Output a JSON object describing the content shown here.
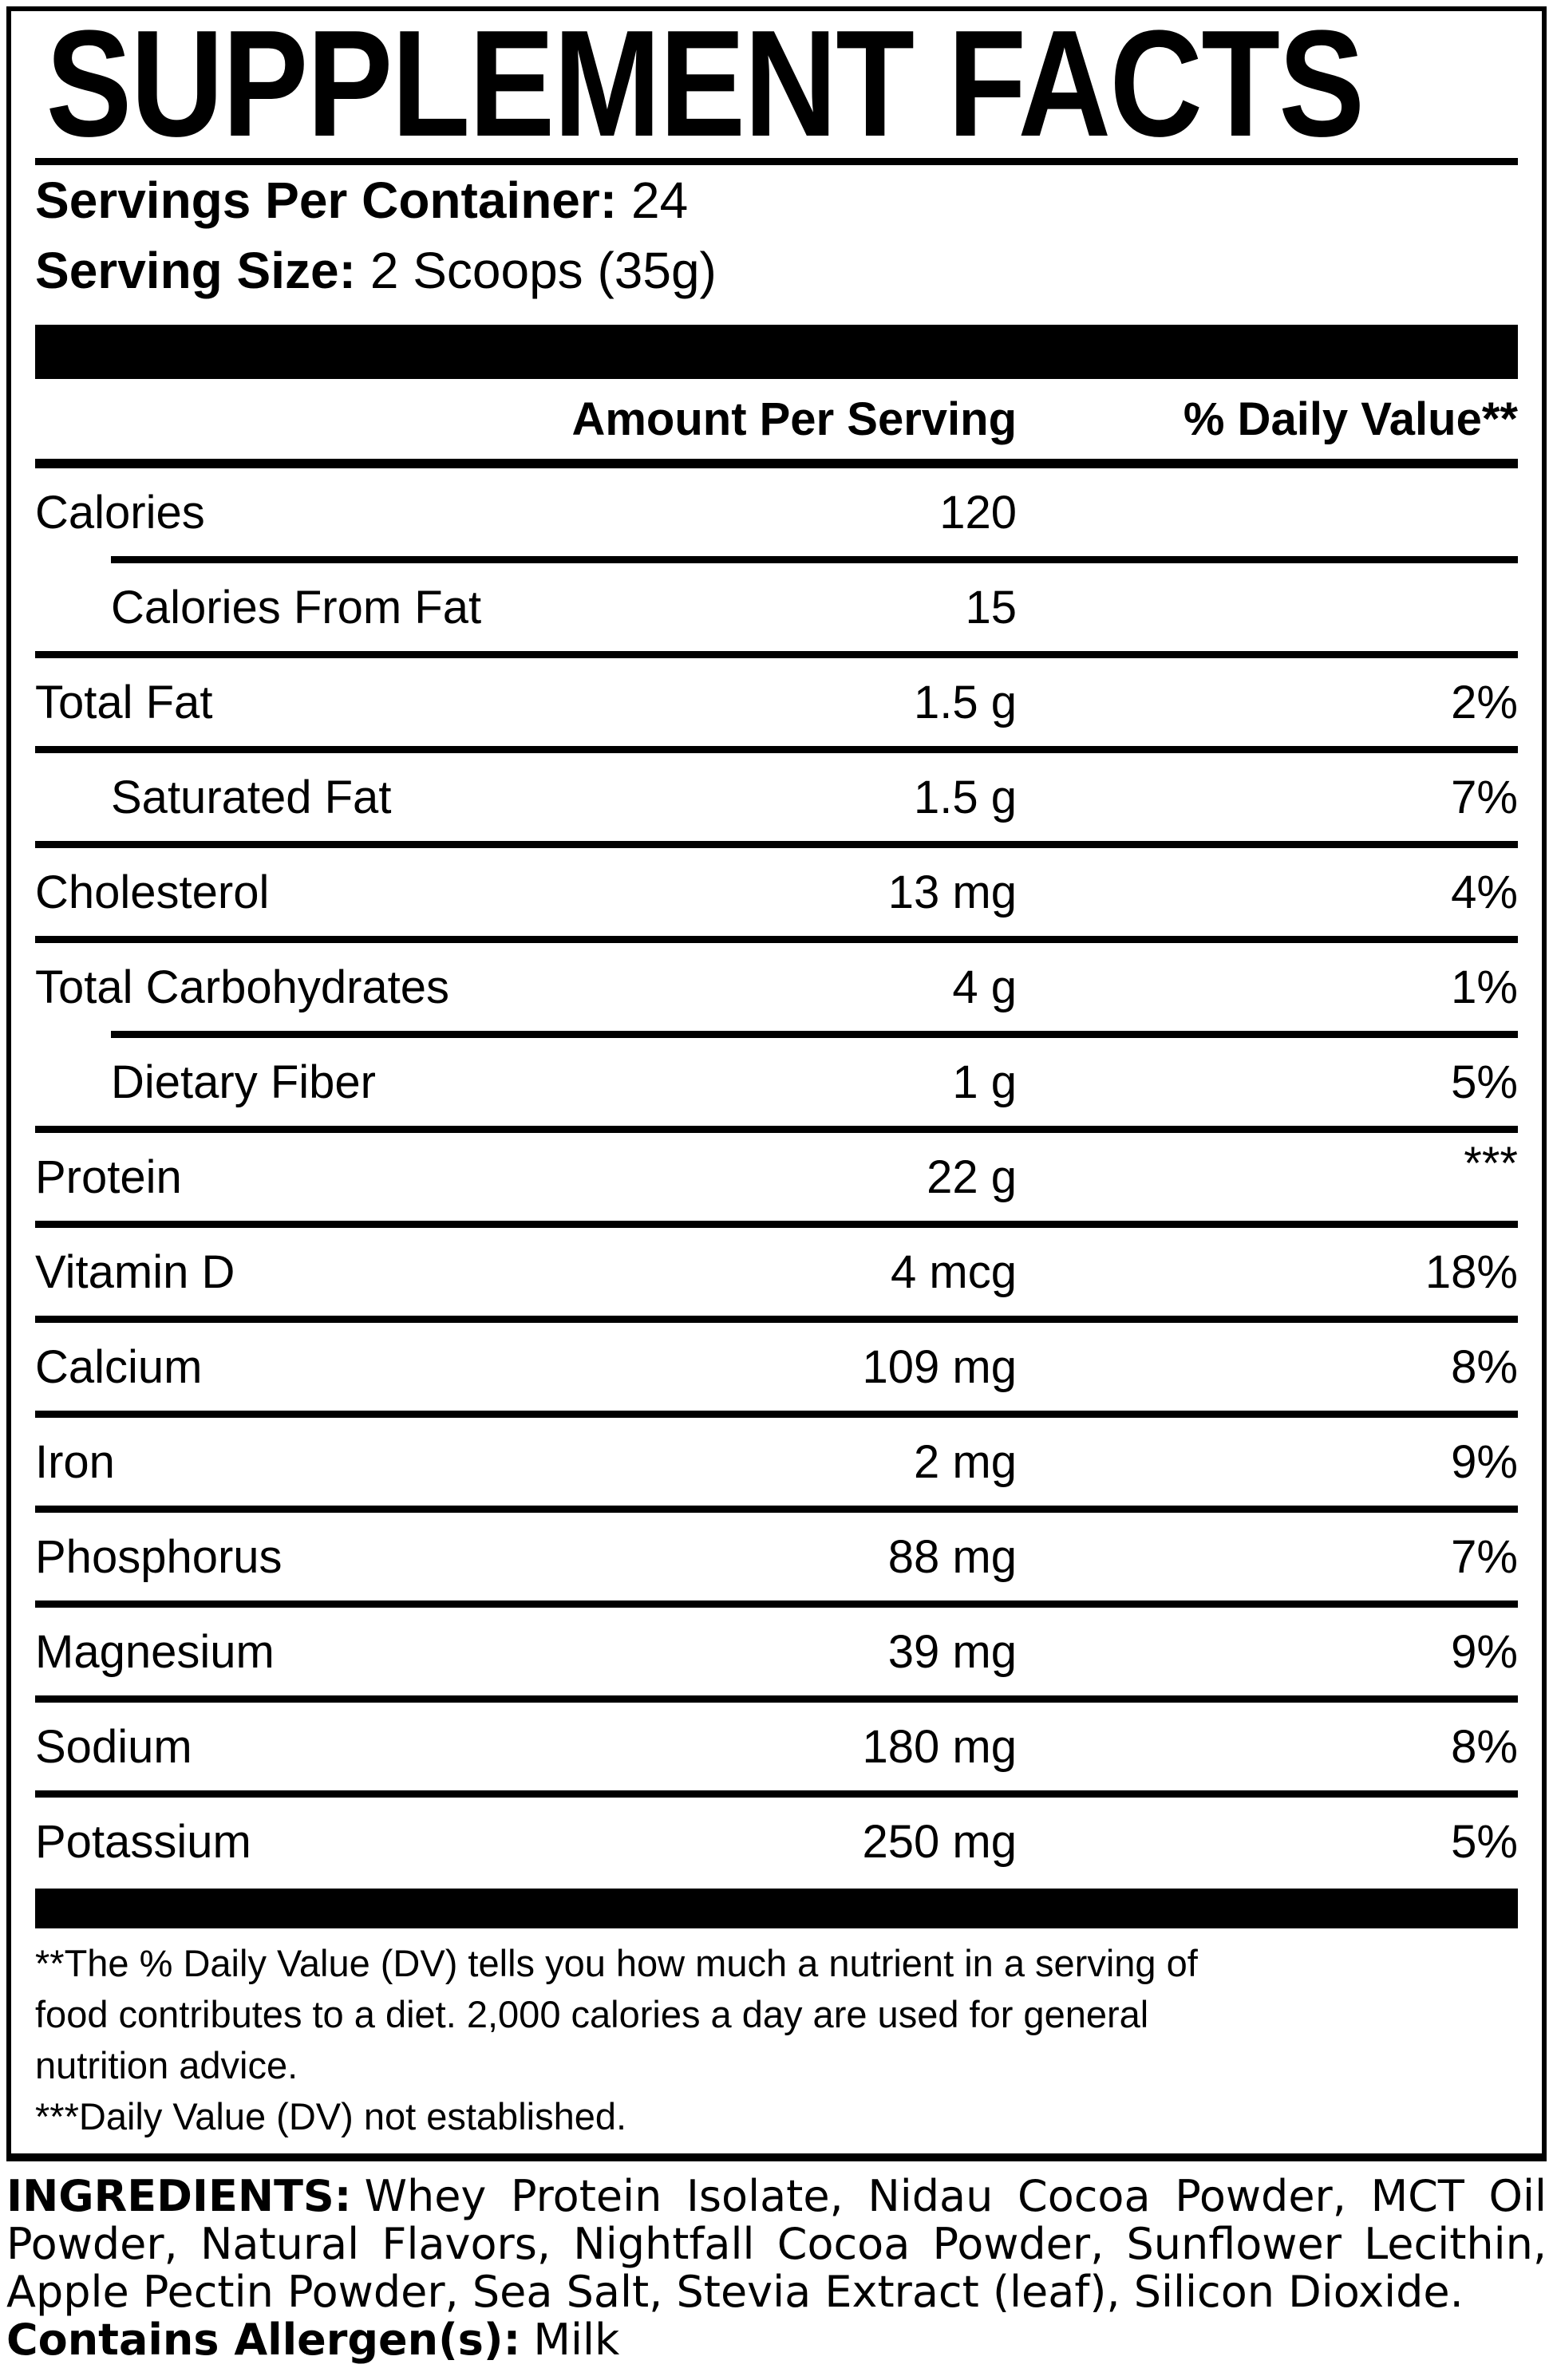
{
  "title": "SUPPLEMENT FACTS",
  "serving": {
    "servings_label": "Servings Per Container:",
    "servings_value": "24",
    "size_label": "Serving Size:",
    "size_value": "2 Scoops (35g)"
  },
  "table": {
    "col_amount": "Amount Per Serving",
    "col_dv": "% Daily Value**",
    "rows": [
      {
        "label": "Calories",
        "amount": "120",
        "dv": ""
      },
      {
        "label": "Calories From Fat",
        "amount": "15",
        "dv": ""
      },
      {
        "label": "Total Fat",
        "amount": "1.5 g",
        "dv": "2%"
      },
      {
        "label": "Saturated Fat",
        "amount": "1.5 g",
        "dv": "7%"
      },
      {
        "label": "Cholesterol",
        "amount": "13 mg",
        "dv": "4%"
      },
      {
        "label": "Total Carbohydrates",
        "amount": "4 g",
        "dv": "1%"
      },
      {
        "label": "Dietary Fiber",
        "amount": "1 g",
        "dv": "5%"
      },
      {
        "label": "Protein",
        "amount": "22 g",
        "dv": "***"
      },
      {
        "label": "Vitamin D",
        "amount": "4 mcg",
        "dv": "18%"
      },
      {
        "label": "Calcium",
        "amount": "109 mg",
        "dv": "8%"
      },
      {
        "label": "Iron",
        "amount": "2 mg",
        "dv": "9%"
      },
      {
        "label": "Phosphorus",
        "amount": "88 mg",
        "dv": "7%"
      },
      {
        "label": "Magnesium",
        "amount": "39 mg",
        "dv": "9%"
      },
      {
        "label": "Sodium",
        "amount": "180 mg",
        "dv": "8%"
      },
      {
        "label": "Potassium",
        "amount": "250 mg",
        "dv": "5%"
      }
    ]
  },
  "footnotes": {
    "line1": "**The % Daily Value (DV) tells you how much a nutrient in a serving of",
    "line2": "food contributes to a diet. 2,000 calories a day are used for general",
    "line3": "nutrition advice.",
    "line4": "***Daily Value (DV) not established."
  },
  "ingredients": {
    "heading": "INGREDIENTS:",
    "line1_rest": "Whey Protein Isolate, Nidau Cocoa Powder, MCT Oil",
    "line2": "Powder, Natural Flavors, Nightfall Cocoa Powder, Sunflower Lecithin,",
    "line3": "Apple Pectin Powder, Sea Salt, Stevia Extract (leaf), Silicon Dioxide.",
    "allergen_label": "Contains Allergen(s):",
    "allergen_value": "Milk"
  },
  "colors": {
    "ink": "#000000",
    "paper": "#ffffff"
  }
}
